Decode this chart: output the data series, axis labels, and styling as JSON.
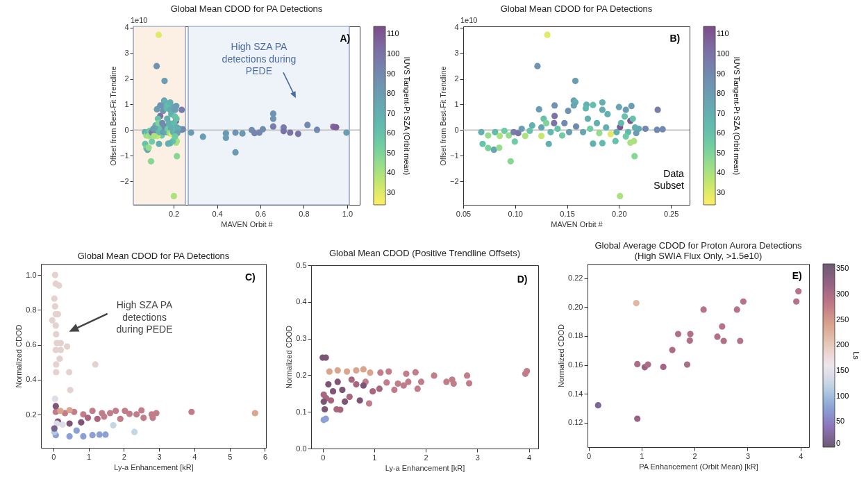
{
  "chart_data": [
    {
      "type": "scatter",
      "title": "Global Mean CDOD for PA Detections",
      "xlabel": "MAVEN Orbit #",
      "ylabel": "Offset from Best-Fit Trendline",
      "clabel": "IUVS Tangent-Pt SZA (Orbit mean)",
      "annotations": [
        "1e10",
        "A)",
        "High SZA PA detections during PEDE"
      ],
      "x": [
        0.131,
        0.1215,
        0.158,
        0.0957,
        0.201,
        0.215,
        0.0687,
        0.074,
        0.0796,
        0.0847,
        0.0997,
        0.1565,
        0.158,
        0.1565,
        0.138,
        0.138,
        0.123,
        0.151,
        0.1687,
        0.168,
        0.175,
        0.184,
        0.184,
        0.189,
        0.2,
        0.2066,
        0.212,
        0.211,
        0.2255,
        0.2366,
        0.242,
        0.2373,
        0.219,
        0.2144,
        0.211,
        0.1966,
        0.184,
        0.175,
        0.1453,
        0.1324,
        0.1253,
        0.1164,
        0.1141,
        0.0674,
        0.074,
        0.0807,
        0.0852,
        0.0896,
        0.094,
        0.0986,
        0.103,
        0.1063,
        0.1097,
        0.1253,
        0.1275,
        0.13,
        0.1342,
        0.1409,
        0.1475,
        0.152,
        0.1587,
        0.1654,
        0.17,
        0.1722,
        0.1787,
        0.181,
        0.1876,
        0.192,
        0.1977,
        0.202,
        0.2055,
        0.2088,
        0.2133,
        0.2155,
        0.2166,
        0.2066,
        0.28,
        0.335,
        0.441,
        0.441,
        0.485,
        0.485,
        0.517,
        0.56,
        0.573,
        0.595,
        0.611,
        0.659,
        0.659,
        0.659,
        0.707,
        0.707,
        0.737,
        0.774,
        0.817,
        0.861,
        0.936,
        0.949,
        0.997
      ],
      "values": [
        3.72,
        2.5,
        1.92,
        -1.22,
        -2.58,
        -1.02,
        -0.54,
        -0.7,
        -0.77,
        -0.69,
        -0.45,
        1.15,
        1.09,
        0.96,
        0.96,
        0.55,
        0.81,
        0.75,
        0.99,
        0.85,
        0.98,
        1.08,
        0.79,
        0.62,
        0.9,
        0.79,
        0.94,
        0.36,
        0.05,
        0.01,
        0.03,
        0.79,
        0.05,
        -0.43,
        -0.49,
        -0.43,
        -0.51,
        -0.53,
        -0.21,
        -0.54,
        -0.23,
        0.18,
        -0.03,
        -0.08,
        -0.21,
        -0.08,
        -0.23,
        -0.03,
        -0.21,
        -0.08,
        -0.12,
        0.05,
        -0.23,
        0.1,
        0.44,
        0.27,
        -0.08,
        0.05,
        0.27,
        -0.08,
        0.14,
        -0.08,
        0.44,
        0.05,
        0.27,
        -0.12,
        0.1,
        -0.16,
        -0.08,
        0.27,
        0.53,
        -0.08,
        0.44,
        0.1,
        -0.12,
        -0.25,
        -0.1,
        -0.26,
        -0.13,
        -0.3,
        -0.1,
        -0.87,
        -0.13,
        0,
        -0.12,
        -0.1,
        0.03,
        0.64,
        0.44,
        0.14,
        0.1,
        -0.04,
        -0.1,
        -0.15,
        0.2,
        0.01,
        0.13,
        0.11,
        -0.1
      ],
      "cvalues": [
        30,
        85,
        80,
        48,
        40,
        48,
        60,
        52,
        75,
        45,
        55,
        80,
        70,
        75,
        85,
        100,
        80,
        85,
        70,
        65,
        62,
        70,
        72,
        70,
        75,
        80,
        80,
        110,
        90,
        90,
        90,
        95,
        72,
        40,
        40,
        60,
        65,
        70,
        55,
        70,
        35,
        70,
        60,
        70,
        45,
        65,
        40,
        55,
        45,
        95,
        100,
        80,
        40,
        75,
        60,
        50,
        65,
        60,
        90,
        80,
        90,
        75,
        70,
        55,
        70,
        45,
        70,
        30,
        70,
        65,
        60,
        65,
        60,
        70,
        80,
        55,
        80,
        80,
        82,
        80,
        85,
        82,
        82,
        88,
        92,
        92,
        88,
        85,
        85,
        95,
        95,
        100,
        100,
        100,
        90,
        90,
        105,
        108,
        80
      ],
      "clim": [
        24,
        114
      ],
      "cticks": [
        30,
        40,
        50,
        60,
        70,
        80,
        90,
        100,
        110
      ],
      "xlim": [
        0.014,
        1.058
      ],
      "xticks": [
        0.2,
        0.4,
        0.6,
        0.8,
        {
          "value": 1,
          "label": "1.0"
        }
      ],
      "ylim": [
        -2.92,
        4.05
      ],
      "yticks": [
        {
          "value": -2,
          "label": "−2"
        },
        {
          "value": -1,
          "label": "−1"
        },
        0,
        1,
        2,
        3,
        4
      ],
      "ref_lines": [
        {
          "axis": "y",
          "value": 0,
          "color": "#b8b8b8"
        }
      ],
      "bands": [
        {
          "axis": "x",
          "from": 0.014,
          "to": 0.254,
          "color": "#fcefe4"
        },
        {
          "axis": "x",
          "from": 0.267,
          "to": 1.01,
          "color": "#eef3fa"
        }
      ],
      "marker": "circle"
    },
    {
      "type": "scatter",
      "title": "Global Mean CDOD for PA Detections",
      "xlabel": "MAVEN Orbit #",
      "ylabel": "Offset from Best-Fit Trendline",
      "clabel": "IUVS Tangent-Pt SZA (Orbit mean)",
      "annotations": [
        "1e10",
        "B)",
        "Data Subset"
      ],
      "x": [
        0.131,
        0.1215,
        0.158,
        0.0957,
        0.201,
        0.215,
        0.0687,
        0.074,
        0.0796,
        0.0847,
        0.0997,
        0.1565,
        0.158,
        0.1565,
        0.138,
        0.138,
        0.1375,
        0.123,
        0.151,
        0.1687,
        0.168,
        0.175,
        0.184,
        0.184,
        0.189,
        0.2,
        0.2066,
        0.212,
        0.211,
        0.201,
        0.2255,
        0.2366,
        0.242,
        0.2373,
        0.219,
        0.2144,
        0.211,
        0.1966,
        0.184,
        0.175,
        0.1453,
        0.1324,
        0.1253,
        0.1164,
        0.1141,
        0.0674,
        0.074,
        0.0807,
        0.0852,
        0.0896,
        0.094,
        0.0986,
        0.103,
        0.1063,
        0.1097,
        0.1253,
        0.1275,
        0.13,
        0.1342,
        0.1409,
        0.1475,
        0.152,
        0.1587,
        0.1654,
        0.17,
        0.1722,
        0.1787,
        0.181,
        0.1876,
        0.192,
        0.1977,
        0.202,
        0.2055,
        0.2088,
        0.2133,
        0.2155,
        0.2166,
        0.2066
      ],
      "values": [
        3.72,
        2.5,
        1.92,
        -1.22,
        -2.58,
        -1.02,
        -0.54,
        -0.7,
        -0.77,
        -0.69,
        -0.45,
        1.15,
        1.09,
        0.96,
        0.96,
        0.55,
        0.27,
        0.81,
        0.75,
        0.99,
        0.85,
        0.98,
        1.08,
        0.79,
        0.62,
        0.9,
        0.79,
        0.94,
        0.36,
        0.12,
        0.05,
        0.01,
        0.03,
        0.79,
        0.05,
        -0.43,
        -0.49,
        -0.43,
        -0.51,
        -0.53,
        -0.21,
        -0.54,
        -0.23,
        0.18,
        -0.03,
        -0.08,
        -0.21,
        -0.08,
        -0.23,
        -0.03,
        -0.21,
        -0.08,
        -0.12,
        0.05,
        -0.23,
        0.1,
        0.44,
        0.27,
        -0.08,
        0.05,
        0.27,
        -0.08,
        0.14,
        -0.08,
        0.44,
        0.05,
        0.27,
        -0.12,
        0.1,
        -0.16,
        -0.08,
        0.27,
        0.53,
        -0.08,
        0.44,
        0.1,
        -0.12,
        -0.25
      ],
      "cvalues": [
        30,
        85,
        80,
        48,
        40,
        48,
        60,
        52,
        75,
        45,
        55,
        80,
        70,
        75,
        85,
        100,
        100,
        80,
        85,
        70,
        65,
        62,
        70,
        72,
        70,
        75,
        80,
        80,
        110,
        110,
        90,
        90,
        90,
        95,
        72,
        40,
        40,
        60,
        65,
        70,
        55,
        70,
        35,
        70,
        60,
        70,
        45,
        65,
        40,
        55,
        45,
        95,
        100,
        80,
        40,
        75,
        60,
        50,
        65,
        60,
        90,
        80,
        90,
        75,
        70,
        55,
        70,
        45,
        70,
        30,
        70,
        65,
        60,
        65,
        60,
        70,
        80,
        55
      ],
      "clim": [
        24,
        114
      ],
      "cticks": [
        30,
        40,
        50,
        60,
        70,
        80,
        90,
        100,
        110
      ],
      "xlim": [
        0.05,
        0.268
      ],
      "xticks": [
        0.05,
        {
          "value": 0.1,
          "label": "0.10"
        },
        0.15,
        {
          "value": 0.2,
          "label": "0.20"
        },
        0.25
      ],
      "ylim": [
        -2.92,
        4.05
      ],
      "yticks": [
        {
          "value": -2,
          "label": "−2"
        },
        {
          "value": -1,
          "label": "−1"
        },
        0,
        1,
        2,
        3,
        4
      ],
      "ref_lines": [
        {
          "axis": "y",
          "value": 0,
          "color": "#b8b8b8"
        }
      ],
      "marker": "circle"
    },
    {
      "type": "scatter",
      "title": "Global Mean CDOD for PA Detections",
      "xlabel": "Ly-a Enhancement [kR]",
      "ylabel": "Normalized CDOD",
      "annotations": [
        "C)",
        "High SZA PA detections during PEDE"
      ],
      "x": [
        0.05,
        0.07,
        0.16,
        0.03,
        0.05,
        0.07,
        0.13,
        -0.03,
        0.07,
        0.08,
        0.1,
        0.21,
        0.07,
        0.21,
        0.18,
        0.39,
        0.08,
        1.19,
        0.08,
        0.45,
        0.48,
        0.05,
        1.7,
        2.3,
        0.07,
        0.33,
        0.59,
        0.85,
        1.11,
        1.38,
        1.61,
        1.77,
        2.03,
        2.16,
        2.36,
        2.5,
        2.56,
        2.79,
        2.92,
        2.82,
        3.92,
        5.72,
        0.98,
        1.25,
        1.9,
        1.44,
        0.13,
        0.46,
        0.79,
        0.07,
        0.46,
        0.85,
        1.11,
        1.31,
        1.48,
        0.66,
        0.1,
        0.26,
        0.03,
        0.2,
        0.46,
        0.03,
        0.07
      ],
      "values": [
        1.0,
        0.95,
        0.94,
        0.865,
        0.82,
        0.775,
        0.775,
        0.74,
        0.71,
        0.66,
        0.61,
        0.61,
        0.57,
        0.57,
        0.52,
        0.59,
        0.487,
        0.487,
        0.443,
        0.443,
        0.34,
        0.29,
        0.138,
        0.1,
        0.215,
        0.208,
        0.215,
        0.201,
        0.221,
        0.208,
        0.208,
        0.221,
        0.221,
        0.204,
        0.201,
        0.224,
        0.181,
        0.201,
        0.208,
        0.181,
        0.215,
        0.208,
        0.181,
        0.175,
        0.175,
        0.188,
        0.16,
        0.148,
        0.155,
        0.082,
        0.075,
        0.075,
        0.082,
        0.085,
        0.085,
        0.108,
        0.148,
        0.142,
        0.1,
        0.221,
        0.225,
        0.12,
        0.248
      ],
      "colors": [
        "#e3d2cf",
        "#e3d2cf",
        "#e3d2cf",
        "#e3d2cf",
        "#e3d2cf",
        "#e3d2cf",
        "#e3d2cf",
        "#e3d2cf",
        "#e3d2cf",
        "#e3d2cf",
        "#e3d2cf",
        "#e3d2cf",
        "#e3d2cf",
        "#e3d2cf",
        "#e3d2cf",
        "#e3d2cf",
        "#e3d2cf",
        "#e3d2cf",
        "#e3d2cf",
        "#e3d2cf",
        "#e3d2cf",
        "#dcdde6",
        "#c4d6e2",
        "#c4d6e2",
        "#c27d8a",
        "#c27d8a",
        "#c27d8a",
        "#c27d8a",
        "#c27d8a",
        "#c27d8a",
        "#c27d8a",
        "#c27d8a",
        "#c27d8a",
        "#c27d8a",
        "#c27d8a",
        "#c27d8a",
        "#c27d8a",
        "#c27d8a",
        "#c27d8a",
        "#c27d8a",
        "#c27d8a",
        "#dba48c",
        "#a8677f",
        "#a8677f",
        "#c27d8a",
        "#c27d8a",
        "#7e5577",
        "#7e5577",
        "#7e5577",
        "#8ca0d6",
        "#8ca0d6",
        "#8ca0d6",
        "#8ca0d6",
        "#8ca0d6",
        "#8ca0d6",
        "#8ca0d6",
        "#dcdde6",
        "#dcdde6",
        "#b2c9e0",
        "#dba48c",
        "#dba48c",
        "#78628f",
        "#7e5577"
      ],
      "xlim": [
        -0.35,
        6.03
      ],
      "xticks": [
        0,
        1,
        2,
        3,
        4,
        5,
        6
      ],
      "ylim": [
        0.009,
        1.064
      ],
      "yticks": [
        0.2,
        0.4,
        0.6,
        0.8,
        {
          "value": 1,
          "label": "1.0"
        }
      ],
      "marker": "circle"
    },
    {
      "type": "scatter",
      "title": "Global Mean CDOD (Positive Trendline Offsets)",
      "xlabel": "Ly-a Enhancement [kR]",
      "ylabel": "Normalized CDOD",
      "annotations": [
        "D)"
      ],
      "x": [
        0.02,
        0.06,
        0,
        0.06,
        0.13,
        0.29,
        0.47,
        0.65,
        0.79,
        0.92,
        1.12,
        1.28,
        1.62,
        1.8,
        2.16,
        2.8,
        3.93,
        3.96,
        2.4,
        2.51,
        2.54,
        2.84,
        1.91,
        1.84,
        1.66,
        1.57,
        1.46,
        1.39,
        1.24,
        1.1,
        0.97,
        0.9,
        0.83,
        0.65,
        0.52,
        0.34,
        0.27,
        0.04,
        0.11,
        0.2,
        0.16,
        0.02,
        0.07,
        0.29,
        0.38,
        0.72,
        0.79,
        0.43,
        0.02,
        0.56
      ],
      "values": [
        0.078,
        0.081,
        0.248,
        0.248,
        0.21,
        0.213,
        0.21,
        0.213,
        0.216,
        0.207,
        0.207,
        0.21,
        0.204,
        0.208,
        0.199,
        0.199,
        0.204,
        0.211,
        0.182,
        0.188,
        0.177,
        0.178,
        0.182,
        0.163,
        0.182,
        0.172,
        0.177,
        0.16,
        0.18,
        0.163,
        0.156,
        0.123,
        0.182,
        0.175,
        0.141,
        0.106,
        0.107,
        0.107,
        0.175,
        0.156,
        0.131,
        0.147,
        0.137,
        0.182,
        0.16,
        0.131,
        0.172,
        0.128,
        0.128,
        0.188
      ],
      "colors": [
        "#8ca0d6",
        "#8ca0d6",
        "#7e5577",
        "#7e5577",
        "#dba48c",
        "#dba48c",
        "#dba48c",
        "#dba48c",
        "#dba48c",
        "#dba48c",
        "#c27d8a",
        "#c27d8a",
        "#c27d8a",
        "#c27d8a",
        "#c27d8a",
        "#c27d8a",
        "#c27d8a",
        "#c27d8a",
        "#c27d8a",
        "#c27d8a",
        "#c27d8a",
        "#c27d8a",
        "#c27d8a",
        "#c27d8a",
        "#c27d8a",
        "#c27d8a",
        "#c27d8a",
        "#c27d8a",
        "#c27d8a",
        "#a8677f",
        "#a8677f",
        "#c27d8a",
        "#c27d8a",
        "#a8677f",
        "#a8677f",
        "#a8677f",
        "#a8677f",
        "#7e5577",
        "#7e5577",
        "#7e5577",
        "#a8677f",
        "#a8677f",
        "#a8677f",
        "#7e5577",
        "#7e5577",
        "#7e5577",
        "#7e5577",
        "#7e5577",
        "#7e5577",
        "#a8677f"
      ],
      "xlim": [
        -0.225,
        4.18
      ],
      "xticks": [
        0,
        1,
        2,
        3,
        4
      ],
      "ylim": [
        0,
        0.5
      ],
      "yticks": [
        {
          "value": 0,
          "label": "0.0"
        },
        0.1,
        0.2,
        0.3,
        0.4,
        0.5
      ],
      "marker": "circle"
    },
    {
      "type": "scatter",
      "title": "Global Average CDOD for Proton Aurora Detections",
      "subtitle": "(High SWIA Flux Only, >1.5e10)",
      "xlabel": "PA Enhancement (Orbit Mean) [kR]",
      "ylabel": "Normalized CDOD",
      "clabel": "Ls",
      "annotations": [
        "E)"
      ],
      "x": [
        0.18,
        0.9,
        0.92,
        0.92,
        1.06,
        1.12,
        1.41,
        1.58,
        1.69,
        1.86,
        1.91,
        1.92,
        2.17,
        2.43,
        2.52,
        2.55,
        2.8,
        2.86,
        2.92,
        3.92,
        3.96
      ],
      "values": [
        0.132,
        0.2028,
        0.1227,
        0.1605,
        0.1584,
        0.1602,
        0.1586,
        0.1703,
        0.1814,
        0.1602,
        0.1768,
        0.1814,
        0.1983,
        0.1795,
        0.1866,
        0.1766,
        0.1983,
        0.1766,
        0.2039,
        0.2039,
        0.211
      ],
      "cvalues": [
        20,
        220,
        320,
        300,
        320,
        300,
        310,
        300,
        295,
        300,
        295,
        295,
        290,
        295,
        290,
        295,
        290,
        290,
        290,
        290,
        290
      ],
      "clim": [
        0,
        360
      ],
      "cticks": [
        0,
        50,
        100,
        150,
        200,
        250,
        300,
        350
      ],
      "xlim": [
        -0.02,
        4.16
      ],
      "xticks": [
        0,
        1,
        2,
        3,
        4
      ],
      "ylim": [
        0.103,
        0.23
      ],
      "yticks": [
        0.12,
        0.14,
        0.16,
        0.18,
        {
          "value": 0.2,
          "label": "0.20"
        },
        0.22
      ],
      "marker": "circle"
    }
  ]
}
